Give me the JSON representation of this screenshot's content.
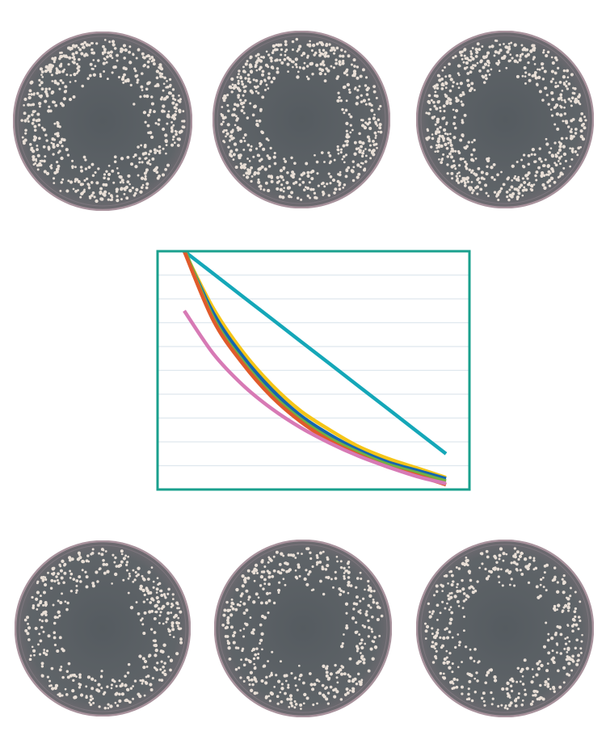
{
  "colors": {
    "frame": "#1aa08e",
    "gridline": "#dfe8ee",
    "dish_agar": "#5f6468",
    "dish_rim": "#a8929c",
    "colony": "#e9dfd6"
  },
  "dishes": [
    {
      "row": "top",
      "position": "left"
    },
    {
      "row": "top",
      "position": "center"
    },
    {
      "row": "top",
      "position": "right"
    },
    {
      "row": "bottom",
      "position": "left"
    },
    {
      "row": "bottom",
      "position": "center"
    },
    {
      "row": "bottom",
      "position": "right"
    }
  ],
  "chart_data": {
    "type": "line",
    "title": "",
    "xlabel": "",
    "ylabel": "",
    "x": [
      1,
      2,
      3,
      4,
      5,
      6,
      7,
      8,
      9,
      10
    ],
    "xlim": [
      1,
      10
    ],
    "ylim": [
      0,
      10
    ],
    "grid": true,
    "legend": "none",
    "series": [
      {
        "color": "#15a7b8",
        "values": [
          10,
          9.06,
          8.11,
          7.17,
          6.22,
          5.28,
          4.33,
          3.39,
          2.44,
          1.5
        ]
      },
      {
        "color": "#f5c518",
        "values": [
          10,
          7.6,
          5.8,
          4.4,
          3.3,
          2.5,
          1.8,
          1.3,
          0.9,
          0.5
        ]
      },
      {
        "color": "#1565b0",
        "values": [
          10,
          7.4,
          5.6,
          4.2,
          3.1,
          2.3,
          1.65,
          1.15,
          0.8,
          0.45
        ]
      },
      {
        "color": "#72b043",
        "values": [
          10.1,
          7.2,
          5.4,
          4.0,
          2.95,
          2.15,
          1.55,
          1.05,
          0.7,
          0.35
        ]
      },
      {
        "color": "#e05a2b",
        "values": [
          10,
          7.1,
          5.3,
          3.9,
          2.85,
          2.05,
          1.45,
          0.95,
          0.6,
          0.2
        ]
      },
      {
        "color": "#d77ab5",
        "values": [
          7.5,
          5.7,
          4.4,
          3.4,
          2.6,
          1.95,
          1.4,
          0.95,
          0.55,
          0.25
        ]
      }
    ]
  }
}
